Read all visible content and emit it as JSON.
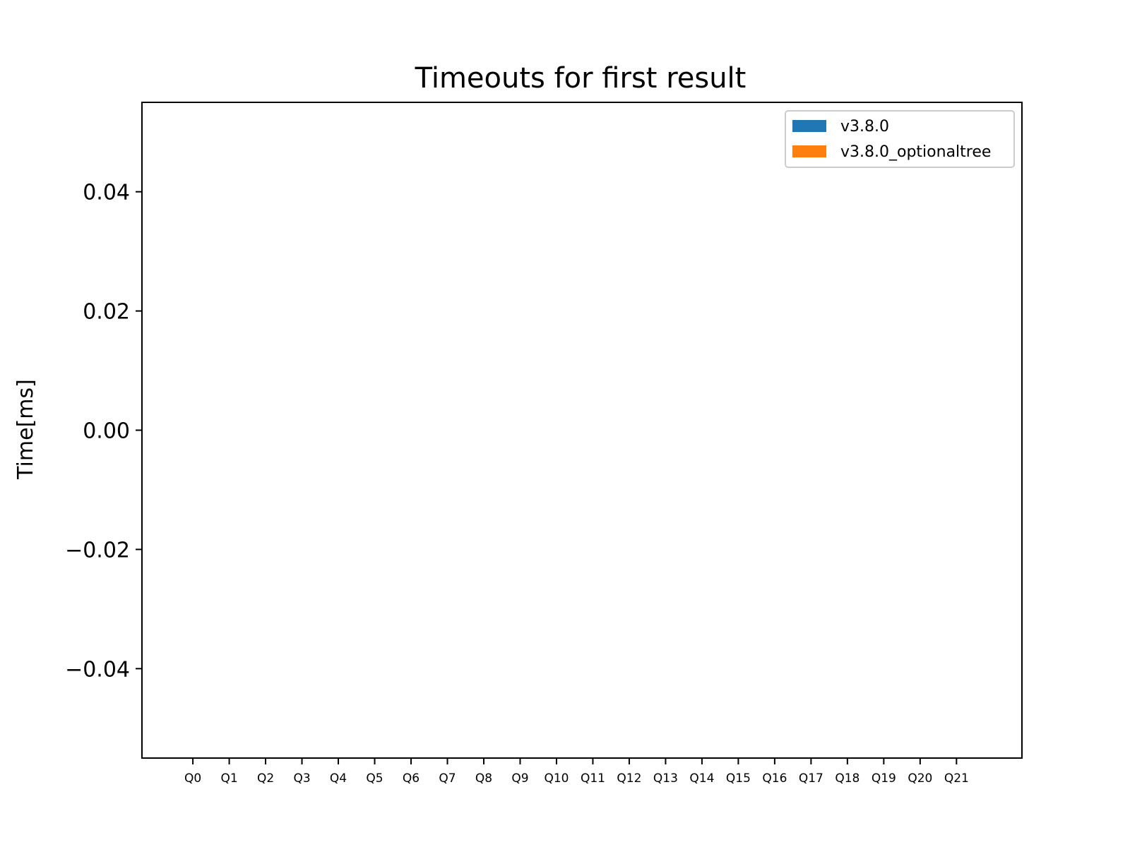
{
  "chart_data": {
    "type": "bar",
    "title": "Timeouts for first result",
    "xlabel": "",
    "ylabel": "Time[ms]",
    "categories": [
      "Q0",
      "Q1",
      "Q2",
      "Q3",
      "Q4",
      "Q5",
      "Q6",
      "Q7",
      "Q8",
      "Q9",
      "Q10",
      "Q11",
      "Q12",
      "Q13",
      "Q14",
      "Q15",
      "Q16",
      "Q17",
      "Q18",
      "Q19",
      "Q20",
      "Q21"
    ],
    "series": [
      {
        "name": "v3.8.0",
        "color": "#1f77b4",
        "values": [
          0,
          0,
          0,
          0,
          0,
          0,
          0,
          0,
          0,
          0,
          0,
          0,
          0,
          0,
          0,
          0,
          0,
          0,
          0,
          0,
          0,
          0
        ]
      },
      {
        "name": "v3.8.0_optionaltree",
        "color": "#ff7f0e",
        "values": [
          0,
          0,
          0,
          0,
          0,
          0,
          0,
          0,
          0,
          0,
          0,
          0,
          0,
          0,
          0,
          0,
          0,
          0,
          0,
          0,
          0,
          0
        ]
      }
    ],
    "ylim": [
      -0.055,
      0.055
    ],
    "yticks": [
      0.04,
      0.02,
      0.0,
      -0.02,
      -0.04
    ],
    "ytick_labels": [
      "0.04",
      "0.02",
      "0.00",
      "−0.02",
      "−0.04"
    ],
    "xlim": [
      -1.4,
      22.8
    ],
    "grid": false,
    "legend_position": "top-right"
  }
}
